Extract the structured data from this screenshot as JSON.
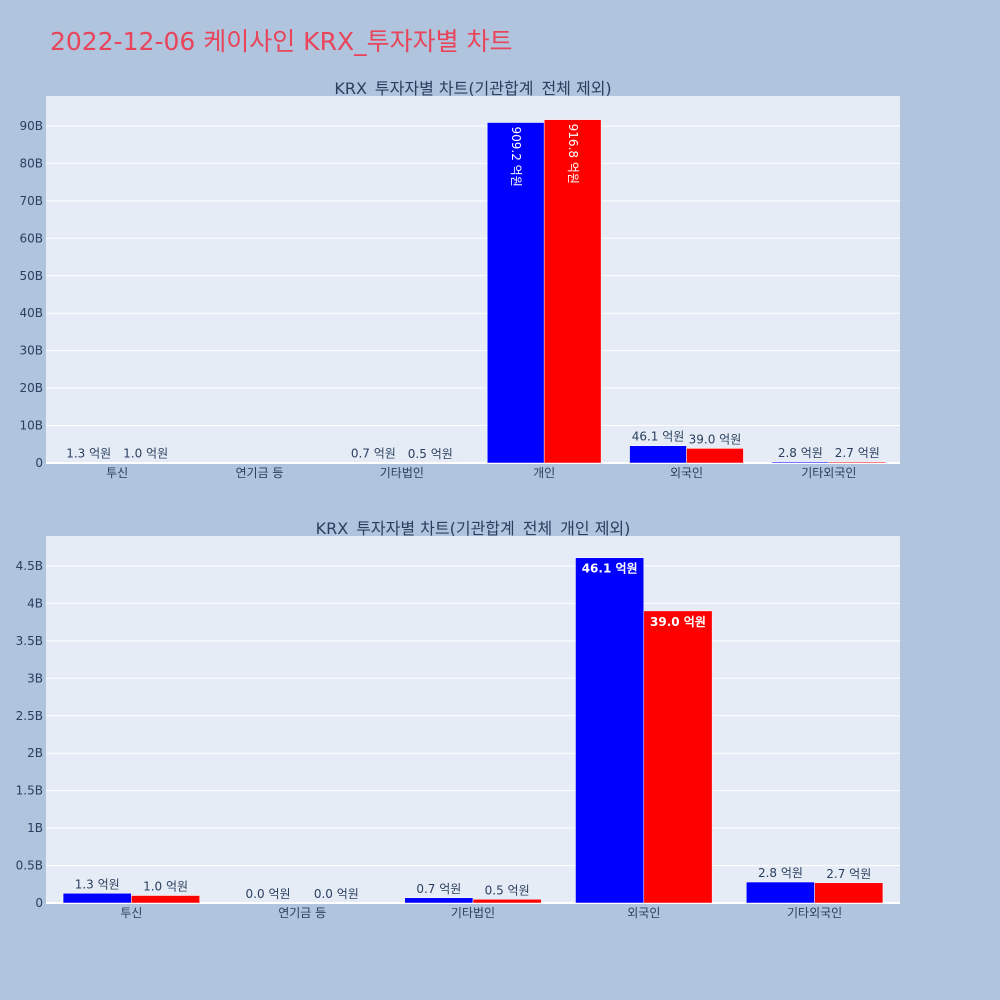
{
  "page": {
    "title": "2022-12-06 케이사인 KRX_투자자별 차트",
    "title_color": "#e8455a",
    "background": "#b0c4de",
    "plot_background": "#e5ecf6"
  },
  "chart_data": [
    {
      "type": "bar",
      "title": "KRX_투자자별 차트(기관합계_전체 제외)",
      "categories": [
        "투신",
        "연기금 등",
        "기타법인",
        "개인",
        "외국인",
        "기타외국인"
      ],
      "series": [
        {
          "color": "#0000ff",
          "values": [
            130000000,
            null,
            70000000,
            90920000000,
            4610000000,
            280000000
          ],
          "labels": [
            "1.3 억원",
            "",
            "0.7 억원",
            "909.2 억원",
            "46.1 억원",
            "2.8 억원"
          ]
        },
        {
          "color": "#ff0000",
          "values": [
            100000000,
            null,
            50000000,
            91680000000,
            3900000000,
            270000000
          ],
          "labels": [
            "1.0 억원",
            "",
            "0.5 억원",
            "916.8 억원",
            "39.0 억원",
            "2.7 억원"
          ]
        }
      ],
      "ylim": [
        0,
        98000000000
      ],
      "yticks": [
        0,
        10000000000,
        20000000000,
        30000000000,
        40000000000,
        50000000000,
        60000000000,
        70000000000,
        80000000000,
        90000000000
      ],
      "ytick_labels": [
        "0",
        "10B",
        "20B",
        "30B",
        "40B",
        "50B",
        "60B",
        "70B",
        "80B",
        "90B"
      ],
      "grid": true
    },
    {
      "type": "bar",
      "title": "KRX_투자자별 차트(기관합계_전체_개인 제외)",
      "categories": [
        "투신",
        "연기금 등",
        "기타법인",
        "외국인",
        "기타외국인"
      ],
      "series": [
        {
          "color": "#0000ff",
          "values": [
            130000000,
            0,
            70000000,
            4610000000,
            280000000
          ],
          "labels": [
            "1.3 억원",
            "0.0 억원",
            "0.7 억원",
            "46.1 억원",
            "2.8 억원"
          ]
        },
        {
          "color": "#ff0000",
          "values": [
            100000000,
            0,
            50000000,
            3900000000,
            270000000
          ],
          "labels": [
            "1.0 억원",
            "0.0 억원",
            "0.5 억원",
            "39.0 억원",
            "2.7 억원"
          ]
        }
      ],
      "ylim": [
        0,
        4900000000
      ],
      "yticks": [
        0,
        500000000,
        1000000000,
        1500000000,
        2000000000,
        2500000000,
        3000000000,
        3500000000,
        4000000000,
        4500000000
      ],
      "ytick_labels": [
        "0",
        "0.5B",
        "1B",
        "1.5B",
        "2B",
        "2.5B",
        "3B",
        "3.5B",
        "4B",
        "4.5B"
      ],
      "grid": true
    }
  ]
}
